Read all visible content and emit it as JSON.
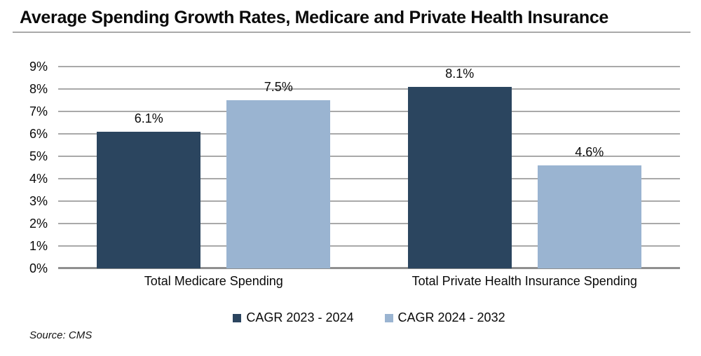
{
  "title": "Average Spending Growth Rates, Medicare and Private Health Insurance",
  "source": "Source: CMS",
  "colors": {
    "series_dark": "#2b455f",
    "series_light": "#9ab4d1",
    "gridline": "#a9a9a9",
    "axis": "#8f8f8f",
    "title_rule": "#a9a9a9",
    "text": "#0a0a0a"
  },
  "chart_data": {
    "type": "bar",
    "title": "Average Spending Growth Rates, Medicare and Private Health Insurance",
    "categories": [
      "Total Medicare Spending",
      "Total Private Health Insurance Spending"
    ],
    "series": [
      {
        "name": "CAGR 2023 - 2024",
        "color": "#2b455f",
        "values": [
          6.1,
          8.1
        ],
        "labels": [
          "6.1%",
          "8.1%"
        ]
      },
      {
        "name": "CAGR 2024 - 2032",
        "color": "#9ab4d1",
        "values": [
          7.5,
          4.6
        ],
        "labels": [
          "7.5%",
          "4.6%"
        ]
      }
    ],
    "y_axis": {
      "min": 0,
      "max": 9,
      "step": 1,
      "tick_suffix": "%"
    },
    "tick_labels": [
      "0%",
      "1%",
      "2%",
      "3%",
      "4%",
      "5%",
      "6%",
      "7%",
      "8%",
      "9%"
    ],
    "grid": true,
    "legend_position": "bottom",
    "source": "Source: CMS"
  }
}
